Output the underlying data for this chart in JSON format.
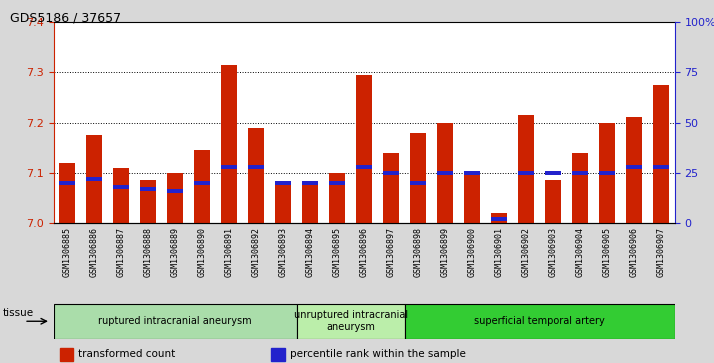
{
  "title": "GDS5186 / 37657",
  "samples": [
    "GSM1306885",
    "GSM1306886",
    "GSM1306887",
    "GSM1306888",
    "GSM1306889",
    "GSM1306890",
    "GSM1306891",
    "GSM1306892",
    "GSM1306893",
    "GSM1306894",
    "GSM1306895",
    "GSM1306896",
    "GSM1306897",
    "GSM1306898",
    "GSM1306899",
    "GSM1306900",
    "GSM1306901",
    "GSM1306902",
    "GSM1306903",
    "GSM1306904",
    "GSM1306905",
    "GSM1306906",
    "GSM1306907"
  ],
  "transformed_count": [
    7.12,
    7.175,
    7.11,
    7.085,
    7.1,
    7.145,
    7.315,
    7.19,
    7.075,
    7.08,
    7.1,
    7.295,
    7.14,
    7.18,
    7.2,
    7.1,
    7.02,
    7.215,
    7.085,
    7.14,
    7.2,
    7.21,
    7.275
  ],
  "percentile_rank": [
    20,
    22,
    18,
    17,
    16,
    20,
    28,
    28,
    20,
    20,
    20,
    28,
    25,
    20,
    25,
    25,
    2,
    25,
    25,
    25,
    25,
    28,
    28
  ],
  "ylim": [
    7.0,
    7.4
  ],
  "yticks": [
    7.0,
    7.1,
    7.2,
    7.3,
    7.4
  ],
  "right_yticks": [
    0,
    25,
    50,
    75,
    100
  ],
  "right_ylabels": [
    "0",
    "25",
    "50",
    "75",
    "100%"
  ],
  "bar_color": "#cc2200",
  "percentile_color": "#2222cc",
  "bg_color": "#d8d8d8",
  "xtick_bg": "#cccccc",
  "plot_bg": "#ffffff",
  "groups": [
    {
      "label": "ruptured intracranial aneurysm",
      "start": 0,
      "end": 9,
      "color": "#aaddaa"
    },
    {
      "label": "unruptured intracranial\naneurysm",
      "start": 9,
      "end": 13,
      "color": "#bbeeaa"
    },
    {
      "label": "superficial temporal artery",
      "start": 13,
      "end": 23,
      "color": "#33cc33"
    }
  ],
  "tissue_label": "tissue",
  "legend_items": [
    {
      "label": "transformed count",
      "color": "#cc2200"
    },
    {
      "label": "percentile rank within the sample",
      "color": "#2222cc"
    }
  ],
  "bar_width": 0.6
}
